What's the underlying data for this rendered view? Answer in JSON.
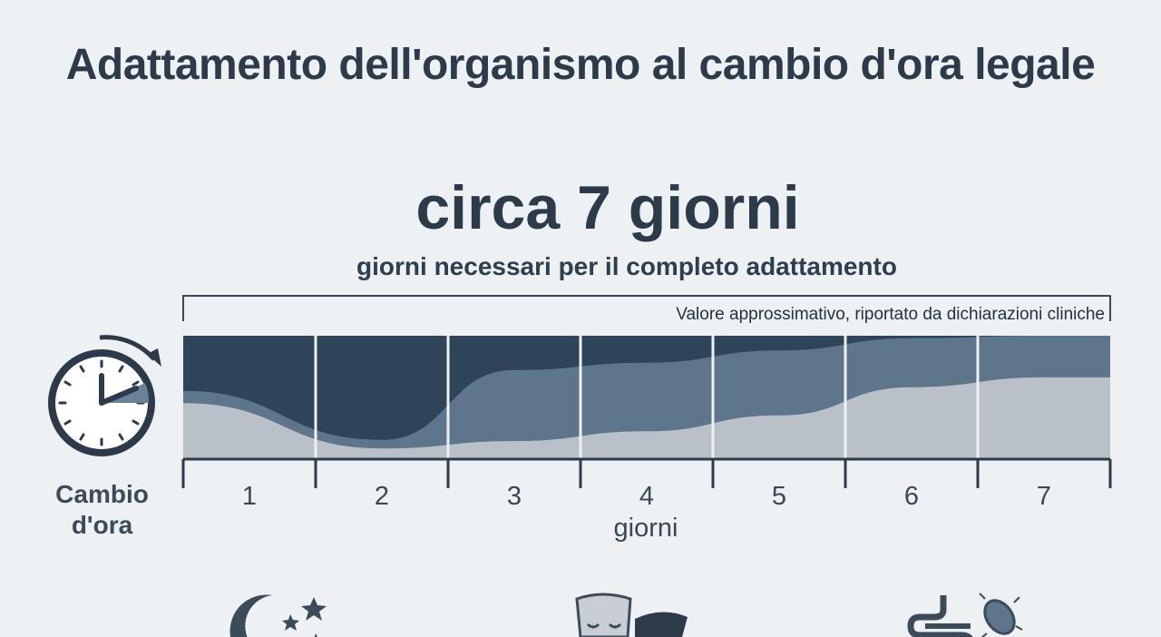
{
  "title": "Adattamento dell'organismo al cambio d'ora legale",
  "headline": "circa 7 giorni",
  "subheadline": "giorni necessari per il completo adattamento",
  "note": "Valore approssimativo, riportato da dichiarazioni cliniche",
  "clock_label_line1": "Cambio",
  "clock_label_line2": "d'ora",
  "colors": {
    "background": "#edf1f4",
    "dark": "#2f4359",
    "mid": "#5e768b",
    "light": "#b9c0c7",
    "text": "#2c3a4a"
  },
  "icons": [
    "clock-arrow-icon",
    "moon-stars-icon",
    "mask-icon",
    "intestine-bacteria-icon"
  ],
  "chart_data": {
    "type": "area",
    "categories": [
      "1",
      "2",
      "3",
      "4",
      "5",
      "6",
      "7"
    ],
    "xlabel": "giorni",
    "ylabel": "",
    "grid": true,
    "series": [
      {
        "values": [
          0.55,
          0.15,
          0.72,
          0.78,
          0.88,
          0.98,
          1.0
        ]
      },
      {
        "values": [
          0.45,
          0.08,
          0.14,
          0.22,
          0.35,
          0.58,
          0.66
        ]
      }
    ],
    "ylim": [
      0,
      1
    ]
  }
}
